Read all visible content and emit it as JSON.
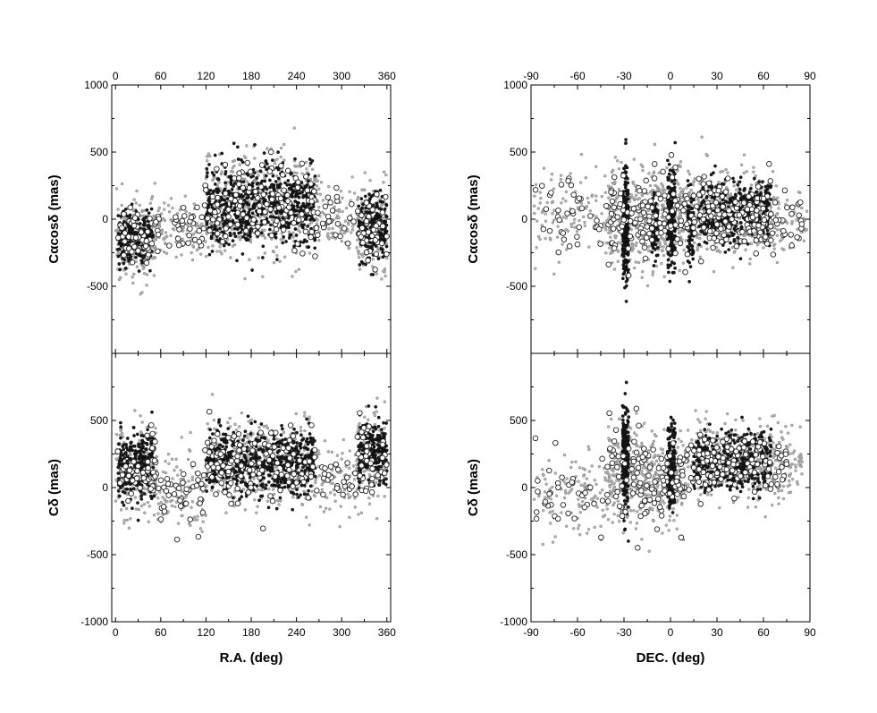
{
  "chart_data": [
    {
      "type": "scatter",
      "panel": "top-left",
      "xlabel": "",
      "ylabel": "Cαcosδ (mas)",
      "xlim": [
        -5,
        365
      ],
      "ylim": [
        -1000,
        1000
      ],
      "xticks_top": [
        0,
        60,
        120,
        180,
        240,
        300,
        360
      ],
      "xticks_bottom": [],
      "yticks": [
        1000,
        500,
        0,
        -500
      ],
      "series": [
        {
          "style": "open-circle",
          "clusters": [
            {
              "x0": 3,
              "x1": 50,
              "ym": -150,
              "ys": 110,
              "n": 55
            },
            {
              "x0": 50,
              "x1": 118,
              "ym": -60,
              "ys": 80,
              "n": 35
            },
            {
              "x0": 118,
              "x1": 265,
              "ym": 110,
              "ys": 160,
              "n": 130
            },
            {
              "x0": 265,
              "x1": 320,
              "ym": 20,
              "ys": 90,
              "n": 25
            },
            {
              "x0": 320,
              "x1": 360,
              "ym": -70,
              "ys": 120,
              "n": 45
            }
          ]
        },
        {
          "style": "gray-dot",
          "clusters": [
            {
              "x0": 0,
              "x1": 55,
              "ym": -160,
              "ys": 150,
              "n": 200
            },
            {
              "x0": 55,
              "x1": 120,
              "ym": -60,
              "ys": 110,
              "n": 110
            },
            {
              "x0": 120,
              "x1": 270,
              "ym": 110,
              "ys": 190,
              "n": 420
            },
            {
              "x0": 270,
              "x1": 320,
              "ym": 20,
              "ys": 120,
              "n": 70
            },
            {
              "x0": 320,
              "x1": 360,
              "ym": -60,
              "ys": 160,
              "n": 150
            }
          ]
        },
        {
          "style": "dense-dot",
          "clusters": [
            {
              "x0": 3,
              "x1": 50,
              "ym": -150,
              "ys": 100,
              "n": 260
            },
            {
              "x0": 120,
              "x1": 265,
              "ym": 110,
              "ys": 150,
              "n": 650
            },
            {
              "x0": 322,
              "x1": 360,
              "ym": -60,
              "ys": 120,
              "n": 220
            }
          ]
        }
      ]
    },
    {
      "type": "scatter",
      "panel": "bottom-left",
      "xlabel": "R.A. (deg)",
      "ylabel": "Cδ (mas)",
      "xlim": [
        -5,
        365
      ],
      "ylim": [
        -1000,
        1000
      ],
      "xticks_top": [],
      "xticks_bottom": [
        0,
        60,
        120,
        180,
        240,
        300,
        360
      ],
      "yticks": [
        500,
        0,
        -500,
        -1000
      ],
      "series": [
        {
          "style": "open-circle",
          "clusters": [
            {
              "x0": 3,
              "x1": 55,
              "ym": 130,
              "ys": 130,
              "n": 55
            },
            {
              "x0": 55,
              "x1": 118,
              "ym": -40,
              "ys": 110,
              "n": 40
            },
            {
              "x0": 118,
              "x1": 265,
              "ym": 180,
              "ys": 130,
              "n": 130
            },
            {
              "x0": 265,
              "x1": 320,
              "ym": 60,
              "ys": 90,
              "n": 25
            },
            {
              "x0": 320,
              "x1": 360,
              "ym": 230,
              "ys": 130,
              "n": 45
            }
          ]
        },
        {
          "style": "gray-dot",
          "clusters": [
            {
              "x0": 0,
              "x1": 55,
              "ym": 140,
              "ys": 170,
              "n": 200
            },
            {
              "x0": 55,
              "x1": 120,
              "ym": -30,
              "ys": 140,
              "n": 110
            },
            {
              "x0": 120,
              "x1": 270,
              "ym": 180,
              "ys": 150,
              "n": 420
            },
            {
              "x0": 270,
              "x1": 320,
              "ym": 60,
              "ys": 120,
              "n": 70
            },
            {
              "x0": 320,
              "x1": 360,
              "ym": 230,
              "ys": 160,
              "n": 150
            }
          ]
        },
        {
          "style": "dense-dot",
          "clusters": [
            {
              "x0": 3,
              "x1": 52,
              "ym": 160,
              "ys": 120,
              "n": 260
            },
            {
              "x0": 120,
              "x1": 265,
              "ym": 180,
              "ys": 120,
              "n": 650
            },
            {
              "x0": 322,
              "x1": 360,
              "ym": 260,
              "ys": 120,
              "n": 220
            }
          ]
        }
      ]
    },
    {
      "type": "scatter",
      "panel": "top-right",
      "xlabel": "",
      "ylabel": "Cαcosδ (mas)",
      "xlim": [
        -90,
        90
      ],
      "ylim": [
        -1000,
        1000
      ],
      "xticks_top": [
        -90,
        -60,
        -30,
        0,
        30,
        60,
        90
      ],
      "xticks_bottom": [],
      "yticks": [
        1000,
        500,
        0,
        -500
      ],
      "series": [
        {
          "style": "open-circle",
          "clusters": [
            {
              "x0": -88,
              "x1": -40,
              "ym": 60,
              "ys": 140,
              "n": 40
            },
            {
              "x0": -40,
              "x1": -20,
              "ym": 20,
              "ys": 170,
              "n": 45
            },
            {
              "x0": -20,
              "x1": 15,
              "ym": 30,
              "ys": 150,
              "n": 90
            },
            {
              "x0": 15,
              "x1": 65,
              "ym": 30,
              "ys": 130,
              "n": 140
            },
            {
              "x0": 65,
              "x1": 85,
              "ym": -20,
              "ys": 90,
              "n": 25
            }
          ]
        },
        {
          "style": "gray-dot",
          "clusters": [
            {
              "x0": -88,
              "x1": -40,
              "ym": 40,
              "ys": 170,
              "n": 110
            },
            {
              "x0": -40,
              "x1": 0,
              "ym": 0,
              "ys": 190,
              "n": 330
            },
            {
              "x0": 0,
              "x1": 70,
              "ym": 40,
              "ys": 160,
              "n": 500
            },
            {
              "x0": 70,
              "x1": 88,
              "ym": -20,
              "ys": 110,
              "n": 45
            }
          ]
        },
        {
          "style": "dense-dot",
          "clusters": [
            {
              "x0": -31,
              "x1": -27,
              "ym": -50,
              "ys": 200,
              "n": 230
            },
            {
              "x0": -2,
              "x1": 3,
              "ym": 40,
              "ys": 180,
              "n": 230
            },
            {
              "x0": 11,
              "x1": 15,
              "ym": -60,
              "ys": 140,
              "n": 90
            },
            {
              "x0": -12,
              "x1": -8,
              "ym": -40,
              "ys": 130,
              "n": 80
            },
            {
              "x0": 18,
              "x1": 65,
              "ym": 60,
              "ys": 130,
              "n": 420
            }
          ]
        }
      ]
    },
    {
      "type": "scatter",
      "panel": "bottom-right",
      "xlabel": "DEC. (deg)",
      "ylabel": "Cδ (mas)",
      "xlim": [
        -90,
        90
      ],
      "ylim": [
        -1000,
        1000
      ],
      "xticks_top": [],
      "xticks_bottom": [
        -90,
        -60,
        -30,
        0,
        30,
        60,
        90
      ],
      "yticks": [
        500,
        0,
        -500,
        -1000
      ],
      "series": [
        {
          "style": "open-circle",
          "clusters": [
            {
              "x0": -88,
              "x1": -40,
              "ym": -40,
              "ys": 140,
              "n": 40
            },
            {
              "x0": -40,
              "x1": -20,
              "ym": 120,
              "ys": 180,
              "n": 40
            },
            {
              "x0": -20,
              "x1": 10,
              "ym": 40,
              "ys": 140,
              "n": 80
            },
            {
              "x0": 10,
              "x1": 75,
              "ym": 190,
              "ys": 110,
              "n": 150
            }
          ]
        },
        {
          "style": "gray-dot",
          "clusters": [
            {
              "x0": -88,
              "x1": -40,
              "ym": -20,
              "ys": 170,
              "n": 110
            },
            {
              "x0": -40,
              "x1": -15,
              "ym": 100,
              "ys": 180,
              "n": 230
            },
            {
              "x0": -15,
              "x1": 10,
              "ym": 50,
              "ys": 160,
              "n": 200
            },
            {
              "x0": 10,
              "x1": 85,
              "ym": 190,
              "ys": 130,
              "n": 420
            }
          ]
        },
        {
          "style": "dense-dot",
          "clusters": [
            {
              "x0": -31,
              "x1": -27,
              "ym": 200,
              "ys": 200,
              "n": 200
            },
            {
              "x0": -2,
              "x1": 3,
              "ym": 160,
              "ys": 150,
              "n": 160
            },
            {
              "x0": 15,
              "x1": 65,
              "ym": 200,
              "ys": 110,
              "n": 420
            }
          ]
        }
      ]
    }
  ]
}
